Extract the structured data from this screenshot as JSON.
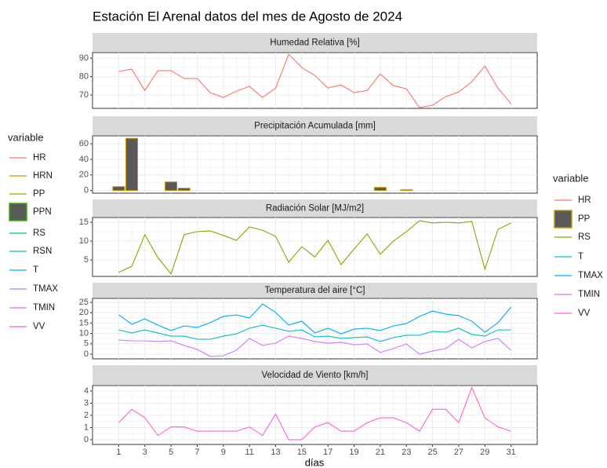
{
  "title": "Estación El Arenal datos del mes de Agosto de 2024",
  "x_label": "días",
  "legends": [
    {
      "title": "variable",
      "items": [
        {
          "name": "HR",
          "color": "#F8766D",
          "kind": "line"
        },
        {
          "name": "HRN",
          "color": "#D89000",
          "kind": "line"
        },
        {
          "name": "PP",
          "color": "#A3A500",
          "kind": "line"
        },
        {
          "name": "PPN",
          "color": "#39B600",
          "fill": "#595959",
          "kind": "box"
        },
        {
          "name": "RS",
          "color": "#00BF7D",
          "kind": "line"
        },
        {
          "name": "RSN",
          "color": "#00BFC4",
          "kind": "line"
        },
        {
          "name": "T",
          "color": "#00B0F6",
          "kind": "line"
        },
        {
          "name": "TMAX",
          "color": "#9590FF",
          "kind": "line"
        },
        {
          "name": "TMIN",
          "color": "#E76BF3",
          "kind": "line"
        },
        {
          "name": "VV",
          "color": "#FF62BC",
          "kind": "line"
        }
      ]
    },
    {
      "title": "variable",
      "items": [
        {
          "name": "HR",
          "color": "#F8766D",
          "kind": "line"
        },
        {
          "name": "PP",
          "color": "#C49A00",
          "fill": "#595959",
          "kind": "box"
        },
        {
          "name": "RS",
          "color": "#7CAE00",
          "kind": "line"
        },
        {
          "name": "T",
          "color": "#00BFC4",
          "kind": "line"
        },
        {
          "name": "TMAX",
          "color": "#00A9FF",
          "kind": "line"
        },
        {
          "name": "TMIN",
          "color": "#C77CFF",
          "kind": "line"
        },
        {
          "name": "VV",
          "color": "#FF61CC",
          "kind": "line"
        }
      ]
    }
  ],
  "chart_data": [
    {
      "type": "line",
      "title": "Humedad Relativa [%]",
      "x": [
        1,
        2,
        3,
        4,
        5,
        6,
        7,
        8,
        9,
        10,
        11,
        12,
        13,
        14,
        15,
        16,
        17,
        18,
        19,
        20,
        21,
        22,
        23,
        24,
        25,
        26,
        27,
        28,
        29,
        30,
        31
      ],
      "xlim": [
        -1,
        33
      ],
      "xticks": [
        1,
        3,
        5,
        7,
        9,
        11,
        13,
        15,
        17,
        19,
        21,
        23,
        25,
        27,
        29,
        31
      ],
      "ylim": [
        62.8,
        93
      ],
      "yticks": [
        70,
        80,
        90
      ],
      "series": [
        {
          "name": "HR",
          "color": "#F8766D",
          "values": [
            82.8,
            84,
            72.5,
            83.2,
            83.2,
            79,
            79,
            71.3,
            68.7,
            72.1,
            74.7,
            68.7,
            73.8,
            92.1,
            84.9,
            80.6,
            73.8,
            75.5,
            71.3,
            72.5,
            81.5,
            75.1,
            73.4,
            63.2,
            64.5,
            69.1,
            71.7,
            77.2,
            85.7,
            73.8,
            65.3
          ]
        }
      ]
    },
    {
      "type": "bar",
      "title": "Precipitación Acumulada [mm]",
      "x": [
        1,
        2,
        3,
        4,
        5,
        6,
        7,
        8,
        9,
        10,
        11,
        12,
        13,
        14,
        15,
        16,
        17,
        18,
        19,
        20,
        21,
        22,
        23,
        24,
        25,
        26,
        27,
        28,
        29,
        30,
        31
      ],
      "xlim": [
        -1,
        33
      ],
      "xticks": [
        1,
        3,
        5,
        7,
        9,
        11,
        13,
        15,
        17,
        19,
        21,
        23,
        25,
        27,
        29,
        31
      ],
      "ylim": [
        -3.4,
        70.2
      ],
      "yticks": [
        0,
        20,
        40,
        60
      ],
      "series": [
        {
          "name": "PP",
          "color": "#C49A00",
          "fill": "#595959",
          "values": [
            5,
            67,
            0,
            0,
            11,
            3,
            0,
            0,
            0,
            0,
            0,
            0,
            0,
            0,
            0,
            0,
            0,
            0,
            0,
            0,
            4,
            0,
            1,
            0,
            0,
            0,
            0,
            0,
            0,
            0,
            0
          ]
        }
      ]
    },
    {
      "type": "line",
      "title": "Radiación Solar [MJ/m2]",
      "x": [
        1,
        2,
        3,
        4,
        5,
        6,
        7,
        8,
        9,
        10,
        11,
        12,
        13,
        14,
        15,
        16,
        17,
        18,
        19,
        20,
        21,
        22,
        23,
        24,
        25,
        26,
        27,
        28,
        29,
        30,
        31
      ],
      "xlim": [
        -1,
        33
      ],
      "xticks": [
        1,
        3,
        5,
        7,
        9,
        11,
        13,
        15,
        17,
        19,
        21,
        23,
        25,
        27,
        29,
        31
      ],
      "ylim": [
        0.63,
        16.25
      ],
      "yticks": [
        5,
        10,
        15
      ],
      "series": [
        {
          "name": "RS",
          "color": "#7CAE00",
          "values": [
            1.7,
            3.3,
            11.7,
            5.6,
            1.25,
            11.7,
            12.5,
            12.7,
            11.5,
            10.2,
            13.75,
            12.9,
            11.25,
            4.4,
            8.5,
            5.8,
            10.2,
            3.75,
            7.9,
            11.9,
            6.5,
            10,
            12.5,
            15.4,
            14.8,
            15,
            14.8,
            15.2,
            2.5,
            13.1,
            14.8
          ]
        }
      ]
    },
    {
      "type": "line",
      "title": "Temperatura del aire [°C]",
      "x": [
        1,
        2,
        3,
        4,
        5,
        6,
        7,
        8,
        9,
        10,
        11,
        12,
        13,
        14,
        15,
        16,
        17,
        18,
        19,
        20,
        21,
        22,
        23,
        24,
        25,
        26,
        27,
        28,
        29,
        30,
        31
      ],
      "xlim": [
        -1,
        33
      ],
      "xticks": [
        1,
        3,
        5,
        7,
        9,
        11,
        13,
        15,
        17,
        19,
        21,
        23,
        25,
        27,
        29,
        31
      ],
      "ylim": [
        -2.27,
        26.9
      ],
      "yticks": [
        0,
        5,
        10,
        15,
        20,
        25
      ],
      "series": [
        {
          "name": "T",
          "color": "#00BFC4",
          "values": [
            11.7,
            10.2,
            11.7,
            10.2,
            8.7,
            8.7,
            7.2,
            7.2,
            8.7,
            9.8,
            12.5,
            14,
            12.5,
            11,
            11.7,
            8.3,
            8.7,
            7.6,
            8,
            8.3,
            6.1,
            8,
            9.1,
            9.1,
            11,
            10.6,
            12.5,
            9.5,
            8.7,
            11.7,
            11.7
          ]
        },
        {
          "name": "TMAX",
          "color": "#00A9FF",
          "values": [
            19,
            14.4,
            17,
            14,
            11.4,
            13.6,
            12.9,
            15.2,
            18.2,
            18.9,
            17.4,
            24.2,
            20.1,
            14,
            15.9,
            10.2,
            12.5,
            9.8,
            12.1,
            12.5,
            11.4,
            13.6,
            14.8,
            18.2,
            20.8,
            19.3,
            18.6,
            15.9,
            10.6,
            15.2,
            22.7
          ]
        },
        {
          "name": "TMIN",
          "color": "#C77CFF",
          "values": [
            6.8,
            6.4,
            6.4,
            6.1,
            6.4,
            4.2,
            2.3,
            -1.1,
            -0.8,
            1.9,
            7.6,
            4.2,
            5.3,
            8.7,
            7.6,
            6.1,
            5.3,
            5.7,
            4.5,
            4.9,
            0.8,
            2.7,
            4.9,
            0,
            1.5,
            2.7,
            7.2,
            3,
            6.1,
            7.6,
            1.9
          ]
        }
      ]
    },
    {
      "type": "line",
      "title": "Velocidad de Viento [km/h]",
      "x": [
        1,
        2,
        3,
        4,
        5,
        6,
        7,
        8,
        9,
        10,
        11,
        12,
        13,
        14,
        15,
        16,
        17,
        18,
        19,
        20,
        21,
        22,
        23,
        24,
        25,
        26,
        27,
        28,
        29,
        30,
        31
      ],
      "xlim": [
        -1,
        33
      ],
      "xticks": [
        1,
        3,
        5,
        7,
        9,
        11,
        13,
        15,
        17,
        19,
        21,
        23,
        25,
        27,
        29,
        31
      ],
      "ylim": [
        -0.39,
        4.45
      ],
      "yticks": [
        0,
        1,
        2,
        3,
        4
      ],
      "series": [
        {
          "name": "VV",
          "color": "#FF61CC",
          "values": [
            1.4,
            2.5,
            1.8,
            0.35,
            1.05,
            1.05,
            0.7,
            0.7,
            0.7,
            0.7,
            1.05,
            0.35,
            2.1,
            0,
            0,
            1.05,
            1.4,
            0.7,
            0.7,
            1.4,
            1.8,
            1.8,
            1.4,
            0.7,
            2.5,
            2.5,
            1.4,
            4.3,
            1.8,
            1.05,
            0.7
          ]
        }
      ]
    }
  ]
}
